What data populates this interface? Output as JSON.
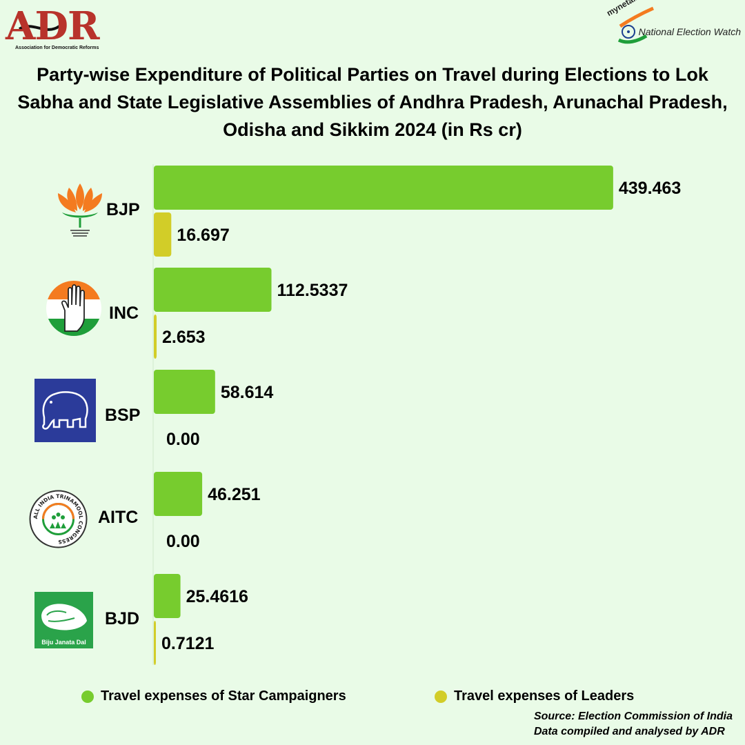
{
  "header": {
    "adr_logo_text": "ADR",
    "adr_tagline": "Association for Democratic Reforms",
    "new_site": "myneta.info",
    "new_text": "National Election Watch"
  },
  "title": "Party-wise Expenditure of Political Parties on Travel during Elections to Lok Sabha and State Legislative Assemblies of Andhra Pradesh, Arunachal Pradesh, Odisha and Sikkim 2024 (in Rs cr)",
  "parties": [
    {
      "name": "BJP",
      "icon": "lotus-icon"
    },
    {
      "name": "INC",
      "icon": "hand-icon"
    },
    {
      "name": "BSP",
      "icon": "elephant-icon"
    },
    {
      "name": "AITC",
      "icon": "flower-grass-icon"
    },
    {
      "name": "BJD",
      "icon": "conch-icon",
      "logo_text": "Biju Janata Dal"
    }
  ],
  "aitc_logo_text": "ALL INDIA TRINAMOOL CONGRESS",
  "colors": {
    "background": "#e9fbe7",
    "star_campaigners": "#77cc2e",
    "leaders": "#d2cd28"
  },
  "chart_data": {
    "type": "bar",
    "orientation": "horizontal",
    "title": "Party-wise Expenditure of Political Parties on Travel during Elections to Lok Sabha and State Legislative Assemblies of Andhra Pradesh, Arunachal Pradesh, Odisha and Sikkim 2024 (in Rs cr)",
    "categories": [
      "BJP",
      "INC",
      "BSP",
      "AITC",
      "BJD"
    ],
    "series": [
      {
        "name": "Travel expenses of Star Campaigners",
        "values": [
          439.463,
          112.5337,
          58.614,
          46.251,
          25.4616
        ],
        "labels": [
          "439.463",
          "112.5337",
          "58.614",
          "46.251",
          "25.4616"
        ]
      },
      {
        "name": "Travel expenses of Leaders",
        "values": [
          16.697,
          2.653,
          0.0,
          0.0,
          0.7121
        ],
        "labels": [
          "16.697",
          "2.653",
          "0.00",
          "0.00",
          "0.7121"
        ]
      }
    ],
    "xlim": [
      0,
      460
    ],
    "xlabel": "",
    "ylabel": "",
    "legend_position": "bottom"
  },
  "legend": {
    "star": "Travel expenses of Star Campaigners",
    "leaders": "Travel expenses of Leaders"
  },
  "source": {
    "line1": "Source: Election Commission of India",
    "line2": "Data compiled and analysed by ADR"
  }
}
